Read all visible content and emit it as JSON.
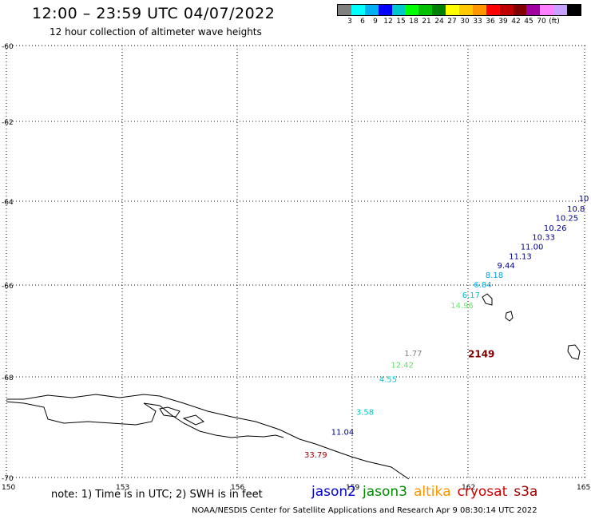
{
  "header": {
    "title": "12:00 – 23:59 UTC 04/07/2022",
    "subtitle": "12 hour collection of altimeter wave heights"
  },
  "scale": {
    "colors": [
      "#808080",
      "#00ffff",
      "#00b0f0",
      "#0000ff",
      "#00c8c8",
      "#00ff00",
      "#00c000",
      "#008000",
      "#ffff00",
      "#ffc800",
      "#ff9600",
      "#ff0000",
      "#c00000",
      "#800000",
      "#a000a0",
      "#ff80ff",
      "#c8a0ff",
      "#000000"
    ],
    "labels": [
      "3",
      "6",
      "9",
      "12",
      "15",
      "18",
      "21",
      "24",
      "27",
      "30",
      "33",
      "36",
      "39",
      "42",
      "45",
      "70",
      "(ft)"
    ]
  },
  "axes": {
    "x_labels": [
      "150",
      "153",
      "156",
      "159",
      "162",
      "165"
    ],
    "y_labels": [
      "-60",
      "-62",
      "-64",
      "-66",
      "-68",
      "-70"
    ]
  },
  "wave_labels": [
    {
      "text": "10",
      "color": "#00008b",
      "lon": 164.85,
      "lat": -64.0
    },
    {
      "text": "10.8",
      "color": "#00008b",
      "lon": 164.55,
      "lat": -64.25
    },
    {
      "text": "10.25",
      "color": "#00008b",
      "lon": 164.25,
      "lat": -64.47
    },
    {
      "text": "10.26",
      "color": "#00008b",
      "lon": 163.95,
      "lat": -64.7
    },
    {
      "text": "10.33",
      "color": "#00008b",
      "lon": 163.65,
      "lat": -64.92
    },
    {
      "text": "11.00",
      "color": "#00008b",
      "lon": 163.35,
      "lat": -65.15
    },
    {
      "text": "11.13",
      "color": "#00008b",
      "lon": 163.05,
      "lat": -65.38
    },
    {
      "text": "9.44",
      "color": "#00008b",
      "lon": 162.75,
      "lat": -65.6
    },
    {
      "text": "8.18",
      "color": "#00a0e0",
      "lon": 162.45,
      "lat": -65.83
    },
    {
      "text": "6.84",
      "color": "#00b0f0",
      "lon": 162.15,
      "lat": -66.05
    },
    {
      "text": "6.17",
      "color": "#00c8c8",
      "lon": 161.85,
      "lat": -66.28
    },
    {
      "text": "14.96",
      "color": "#66ee66",
      "lon": 161.55,
      "lat": -66.5
    },
    {
      "text": "1.77",
      "color": "#808080",
      "lon": 160.35,
      "lat": -67.55
    },
    {
      "text": "12.42",
      "color": "#66dd66",
      "lon": 160.0,
      "lat": -67.8
    },
    {
      "text": "4.55",
      "color": "#00c8c8",
      "lon": 159.7,
      "lat": -68.1
    },
    {
      "text": "3.58",
      "color": "#00c8c8",
      "lon": 159.1,
      "lat": -68.75
    },
    {
      "text": "11.04",
      "color": "#00008b",
      "lon": 158.45,
      "lat": -69.15
    },
    {
      "text": "33.79",
      "color": "#a00000",
      "lon": 157.75,
      "lat": -69.6
    }
  ],
  "pass_time": {
    "text": "2149",
    "color": "#800000",
    "lon": 162.0,
    "lat": -67.5
  },
  "footer": {
    "note": "note: 1) Time is in UTC; 2) SWH is in feet",
    "satellites": [
      {
        "name": "jason2",
        "color": "#0000cc"
      },
      {
        "name": "jason3",
        "color": "#008800"
      },
      {
        "name": "altika",
        "color": "#ff9600"
      },
      {
        "name": "cryosat",
        "color": "#d00000"
      },
      {
        "name": "s3a",
        "color": "#a00000"
      }
    ],
    "credit": "NOAA/NESDIS Center for Satellite Applications and Research    Apr  9 08:30:14 UTC 2022"
  }
}
